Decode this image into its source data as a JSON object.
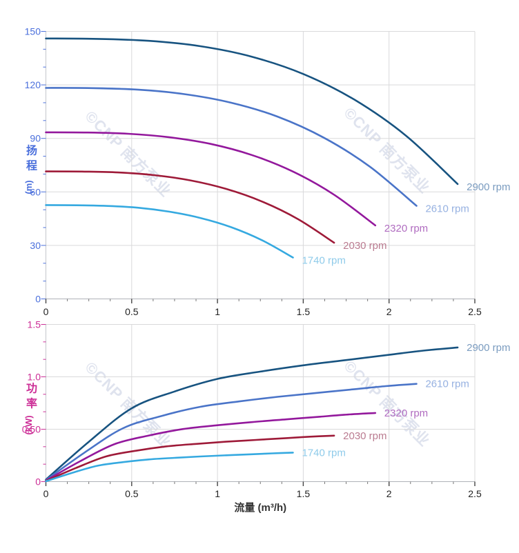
{
  "watermark": {
    "text": "©CNP 南方泵业",
    "color": "#dfe3ee"
  },
  "chart_data": [
    {
      "type": "line",
      "name": "head-vs-flow",
      "title": "",
      "xlabel": "",
      "ylabel_cn": "扬程",
      "ylabel_unit": "(m)",
      "axis_color": "#4a6fdc",
      "xlim": [
        0,
        2.5
      ],
      "ylim": [
        0,
        150
      ],
      "grid": true,
      "legend_position": "curve-ends",
      "x_ticks": [
        0,
        0.5,
        1,
        1.5,
        2,
        2.5
      ],
      "x_tick_labels": [
        "0",
        "0.5",
        "1",
        "1.5",
        "2",
        "2.5"
      ],
      "x_minor_step": 0.125,
      "y_ticks": [
        0,
        30,
        60,
        90,
        120,
        150
      ],
      "y_tick_labels": [
        "0",
        "30",
        "60",
        "90",
        "120",
        "150"
      ],
      "series": [
        {
          "name": "2900 rpm",
          "color": "#175380",
          "label_color": "#7b9cc0",
          "points": [
            [
              0,
              146
            ],
            [
              0.3,
              145.8
            ],
            [
              0.6,
              144.7
            ],
            [
              0.9,
              141.7
            ],
            [
              1.2,
              135.8
            ],
            [
              1.5,
              126.1
            ],
            [
              1.8,
              111.6
            ],
            [
              2.1,
              91.4
            ],
            [
              2.4,
              64.4
            ]
          ]
        },
        {
          "name": "2610 rpm",
          "color": "#4a74c8",
          "label_color": "#96b1e1",
          "points": [
            [
              0,
              118.3
            ],
            [
              0.27,
              118.2
            ],
            [
              0.54,
              117.3
            ],
            [
              0.81,
              114.8
            ],
            [
              1.08,
              110.0
            ],
            [
              1.35,
              102.2
            ],
            [
              1.62,
              90.4
            ],
            [
              1.89,
              74.0
            ],
            [
              2.16,
              52.2
            ]
          ]
        },
        {
          "name": "2320 rpm",
          "color": "#93189c",
          "label_color": "#b06cc0",
          "points": [
            [
              0,
              93.4
            ],
            [
              0.24,
              93.3
            ],
            [
              0.48,
              92.6
            ],
            [
              0.72,
              90.6
            ],
            [
              0.96,
              86.9
            ],
            [
              1.2,
              80.7
            ],
            [
              1.44,
              71.4
            ],
            [
              1.68,
              58.4
            ],
            [
              1.92,
              41.2
            ]
          ]
        },
        {
          "name": "2030 rpm",
          "color": "#9e1a38",
          "label_color": "#ba7b90",
          "points": [
            [
              0,
              71.5
            ],
            [
              0.21,
              71.4
            ],
            [
              0.42,
              70.9
            ],
            [
              0.63,
              69.4
            ],
            [
              0.84,
              66.5
            ],
            [
              1.05,
              61.7
            ],
            [
              1.26,
              54.6
            ],
            [
              1.47,
              44.7
            ],
            [
              1.68,
              31.5
            ]
          ]
        },
        {
          "name": "1740 rpm",
          "color": "#35a9e0",
          "label_color": "#8fcbea",
          "points": [
            [
              0,
              52.6
            ],
            [
              0.18,
              52.5
            ],
            [
              0.36,
              52.1
            ],
            [
              0.54,
              51.1
            ],
            [
              0.72,
              48.9
            ],
            [
              0.9,
              45.4
            ],
            [
              1.08,
              40.2
            ],
            [
              1.26,
              32.9
            ],
            [
              1.44,
              23.2
            ]
          ]
        }
      ]
    },
    {
      "type": "line",
      "name": "power-vs-flow",
      "title": "",
      "xlabel": "流量 (m³/h)",
      "ylabel_cn": "功率",
      "ylabel_unit": "(kW)",
      "axis_color": "#cc2d96",
      "xlim": [
        0,
        2.5
      ],
      "ylim": [
        0,
        1.5
      ],
      "grid": true,
      "legend_position": "curve-ends",
      "x_ticks": [
        0,
        0.5,
        1,
        1.5,
        2,
        2.5
      ],
      "x_tick_labels": [
        "0",
        "0.5",
        "1",
        "1.5",
        "2",
        "2.5"
      ],
      "x_minor_step": 0.125,
      "y_ticks": [
        0,
        0.5,
        1.0,
        1.5
      ],
      "y_tick_labels": [
        "0",
        "0.50",
        "1.0",
        "1.5"
      ],
      "series": [
        {
          "name": "2900 rpm",
          "color": "#175380",
          "label_color": "#7b9cc0",
          "points": [
            [
              0,
              0.02
            ],
            [
              0.25,
              0.38
            ],
            [
              0.5,
              0.7
            ],
            [
              0.75,
              0.86
            ],
            [
              1.0,
              0.98
            ],
            [
              1.25,
              1.05
            ],
            [
              1.5,
              1.11
            ],
            [
              1.75,
              1.16
            ],
            [
              2.0,
              1.21
            ],
            [
              2.2,
              1.25
            ],
            [
              2.4,
              1.28
            ]
          ]
        },
        {
          "name": "2610 rpm",
          "color": "#4a74c8",
          "label_color": "#96b1e1",
          "points": [
            [
              0,
              0.015
            ],
            [
              0.225,
              0.277
            ],
            [
              0.45,
              0.51
            ],
            [
              0.675,
              0.627
            ],
            [
              0.9,
              0.714
            ],
            [
              1.125,
              0.765
            ],
            [
              1.35,
              0.809
            ],
            [
              1.575,
              0.846
            ],
            [
              1.8,
              0.882
            ],
            [
              1.98,
              0.911
            ],
            [
              2.16,
              0.933
            ]
          ]
        },
        {
          "name": "2320 rpm",
          "color": "#93189c",
          "label_color": "#b06cc0",
          "points": [
            [
              0,
              0.01
            ],
            [
              0.2,
              0.195
            ],
            [
              0.4,
              0.358
            ],
            [
              0.6,
              0.44
            ],
            [
              0.8,
              0.502
            ],
            [
              1.0,
              0.538
            ],
            [
              1.2,
              0.568
            ],
            [
              1.4,
              0.594
            ],
            [
              1.6,
              0.62
            ],
            [
              1.76,
              0.64
            ],
            [
              1.92,
              0.655
            ]
          ]
        },
        {
          "name": "2030 rpm",
          "color": "#9e1a38",
          "label_color": "#ba7b90",
          "points": [
            [
              0,
              0.007
            ],
            [
              0.175,
              0.13
            ],
            [
              0.35,
              0.24
            ],
            [
              0.525,
              0.295
            ],
            [
              0.7,
              0.336
            ],
            [
              0.875,
              0.36
            ],
            [
              1.05,
              0.381
            ],
            [
              1.225,
              0.398
            ],
            [
              1.4,
              0.415
            ],
            [
              1.54,
              0.429
            ],
            [
              1.68,
              0.439
            ]
          ]
        },
        {
          "name": "1740 rpm",
          "color": "#35a9e0",
          "label_color": "#8fcbea",
          "points": [
            [
              0,
              0.004
            ],
            [
              0.15,
              0.082
            ],
            [
              0.3,
              0.151
            ],
            [
              0.45,
              0.186
            ],
            [
              0.6,
              0.212
            ],
            [
              0.75,
              0.227
            ],
            [
              0.9,
              0.24
            ],
            [
              1.05,
              0.251
            ],
            [
              1.2,
              0.261
            ],
            [
              1.32,
              0.27
            ],
            [
              1.44,
              0.277
            ]
          ]
        }
      ]
    }
  ]
}
